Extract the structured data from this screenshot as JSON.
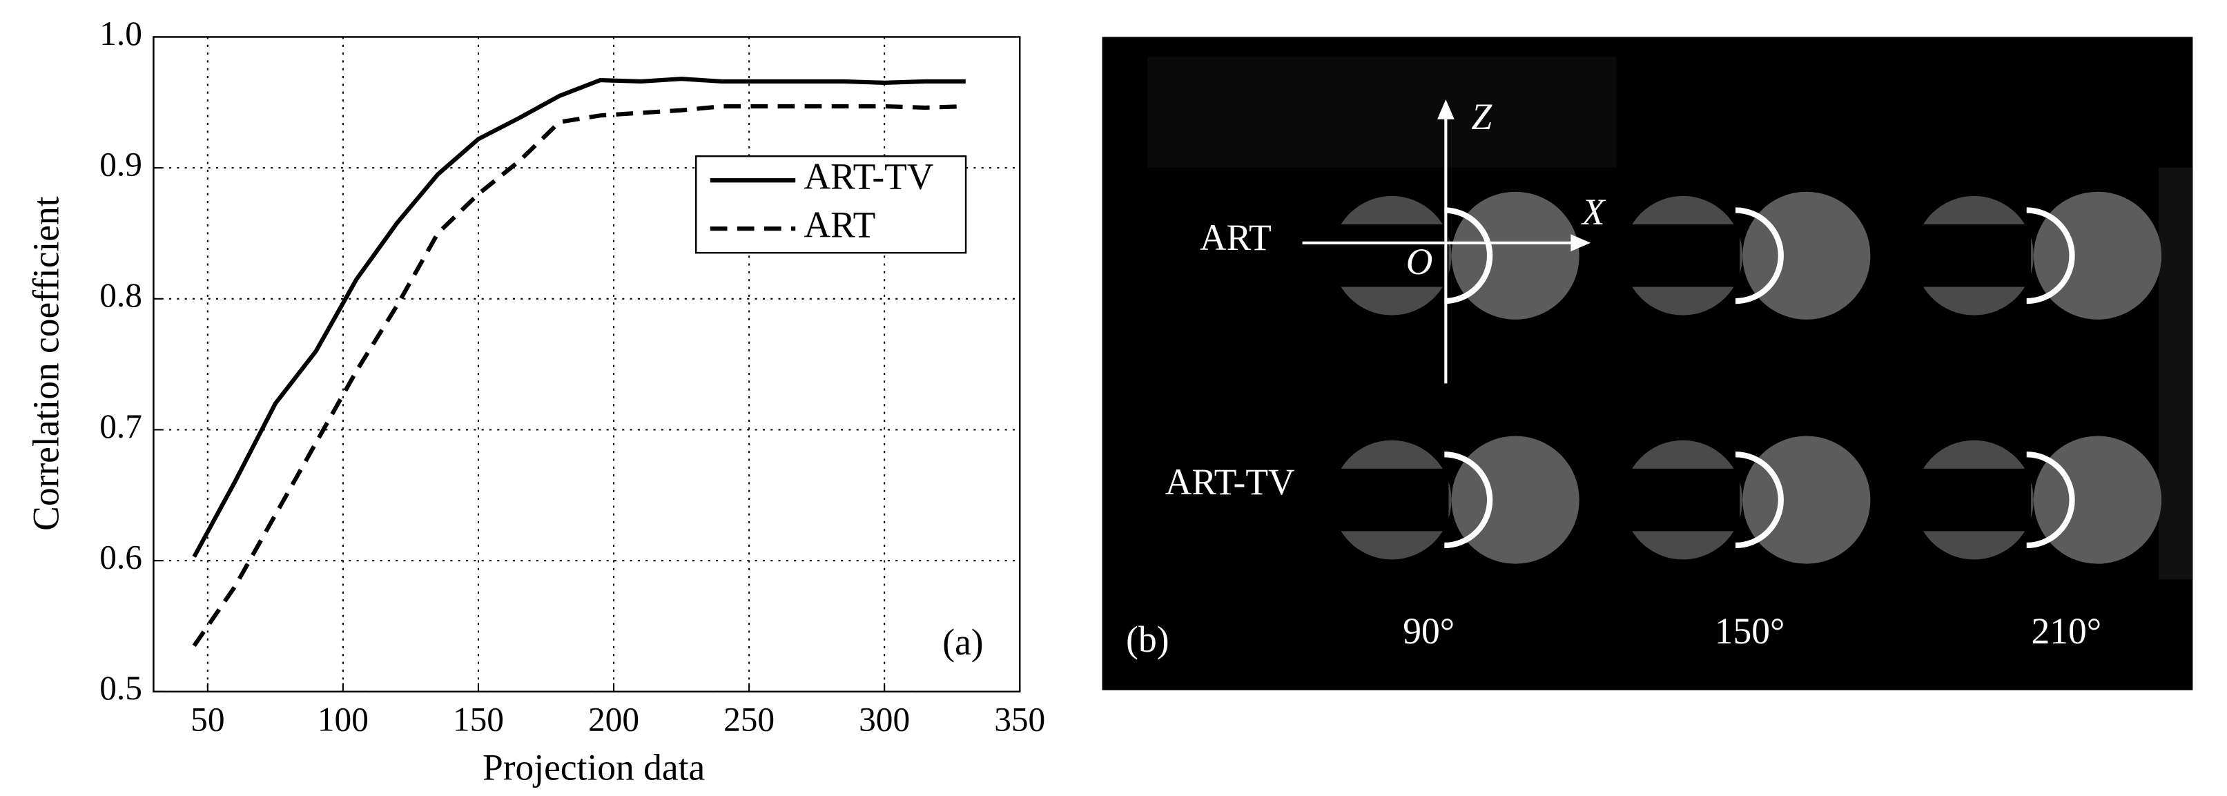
{
  "chart_data": {
    "type": "line",
    "x_label": "Projection data",
    "y_label": "Correlation coefficient",
    "annotation": "(a)",
    "x": [
      45,
      60,
      75,
      90,
      105,
      120,
      135,
      150,
      165,
      180,
      195,
      210,
      225,
      240,
      255,
      270,
      285,
      300,
      315,
      330
    ],
    "series": [
      {
        "name": "ART-TV",
        "color": "#000000",
        "dash": "solid",
        "values": [
          0.603,
          0.66,
          0.72,
          0.76,
          0.815,
          0.858,
          0.895,
          0.922,
          0.938,
          0.955,
          0.967,
          0.966,
          0.968,
          0.966,
          0.966,
          0.966,
          0.966,
          0.965,
          0.966,
          0.966
        ]
      },
      {
        "name": "ART",
        "color": "#000000",
        "dash": "dashed",
        "values": [
          0.535,
          0.58,
          0.635,
          0.69,
          0.745,
          0.795,
          0.85,
          0.88,
          0.905,
          0.935,
          0.94,
          0.942,
          0.944,
          0.947,
          0.947,
          0.947,
          0.947,
          0.947,
          0.946,
          0.947
        ]
      }
    ],
    "xlim": [
      30,
      350
    ],
    "xticks": [
      50,
      100,
      150,
      200,
      250,
      300,
      350
    ],
    "ylim": [
      0.5,
      1
    ],
    "yticks": [
      0.5,
      0.6,
      0.7,
      0.8,
      0.9,
      {
        "value": 1,
        "label": "1.0"
      }
    ],
    "grid": true,
    "legend": "upper right"
  },
  "panel_b": {
    "label": "(b)",
    "rows": [
      "ART",
      "ART-TV"
    ],
    "columns": [
      "90°",
      "150°",
      "210°"
    ],
    "axes": {
      "z": "Z",
      "x": "X",
      "origin": "O"
    }
  }
}
